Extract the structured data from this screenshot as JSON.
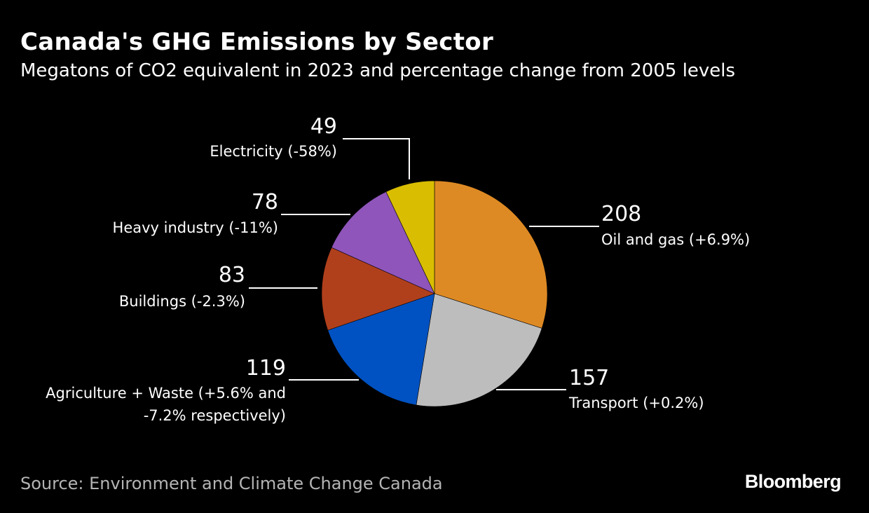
{
  "header": {
    "title": "Canada's GHG Emissions by Sector",
    "subtitle": "Megatons of CO2 equivalent in 2023 and percentage change from 2005 levels"
  },
  "footer": {
    "source": "Source: Environment and Climate Change Canada",
    "brand": "Bloomberg"
  },
  "chart_data": {
    "type": "pie",
    "title": "Canada's GHG Emissions by Sector",
    "subtitle": "Megatons of CO2 equivalent in 2023 and percentage change from 2005 levels",
    "unit": "Megatons of CO2 equivalent",
    "start": "top, clockwise",
    "slices": [
      {
        "id": "oil-and-gas",
        "value": 208,
        "label_lines": [
          "Oil and gas (+6.9%)"
        ],
        "color": "#DE8A24"
      },
      {
        "id": "transport",
        "value": 157,
        "label_lines": [
          "Transport (+0.2%)"
        ],
        "color": "#BDBDBD"
      },
      {
        "id": "agriculture-waste",
        "value": 119,
        "label_lines": [
          "Agriculture + Waste (+5.6% and",
          "-7.2% respectively)"
        ],
        "color": "#0052C2"
      },
      {
        "id": "buildings",
        "value": 83,
        "label_lines": [
          "Buildings (-2.3%)"
        ],
        "color": "#B0401C"
      },
      {
        "id": "heavy-industry",
        "value": 78,
        "label_lines": [
          "Heavy industry (-11%)"
        ],
        "color": "#8F55BB"
      },
      {
        "id": "electricity",
        "value": 49,
        "label_lines": [
          "Electricity (-58%)"
        ],
        "color": "#D9BD00"
      }
    ]
  }
}
